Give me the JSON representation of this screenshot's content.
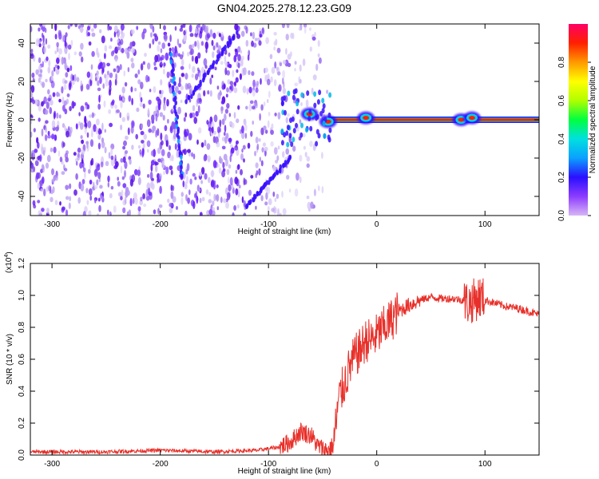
{
  "title": "GN04.2025.278.12.23.G09",
  "colors": {
    "line": "#e8302a",
    "band": "#ff2200",
    "scatter": [
      "#6a20ff",
      "#5a10e8",
      "#8a55f0",
      "#b497f2",
      "#d9c9f7"
    ],
    "colorbar": [
      "#d8b6f5",
      "#8c3cff",
      "#2a10ff",
      "#0aa0ff",
      "#00e0e0",
      "#00ff40",
      "#b0ff00",
      "#ffff00",
      "#ff9900",
      "#ff2000",
      "#ff0066"
    ]
  },
  "chart_data": [
    {
      "type": "heatmap",
      "xlabel": "Height of straight line (km)",
      "ylabel": "Frequency (Hz)",
      "xlim": [
        -320,
        150
      ],
      "ylim": [
        -50,
        50
      ],
      "xticks": [
        -300,
        -200,
        -100,
        0,
        100
      ],
      "yticks": [
        -40,
        -20,
        0,
        20,
        40
      ],
      "colorbar": {
        "label": "Normalized spectral amplitude",
        "range": [
          0,
          1
        ],
        "ticks": [
          "0.0",
          "0.2",
          "0.4",
          "0.6",
          "0.8"
        ]
      },
      "features": {
        "noise_region_x": [
          -320,
          -45
        ],
        "tonal_band": {
          "x": [
            -45,
            150
          ],
          "frequency": 0,
          "amplitude": 1.0
        },
        "streaks": [
          {
            "x": [
              -190,
              -180
            ],
            "f": [
              35,
              -30
            ]
          },
          {
            "x": [
              -175,
              -130
            ],
            "f": [
              10,
              45
            ]
          },
          {
            "x": [
              -120,
              -80
            ],
            "f": [
              -45,
              -20
            ]
          }
        ],
        "hotspots": [
          {
            "x": -62,
            "f": 3
          },
          {
            "x": -45,
            "f": -1
          },
          {
            "x": -10,
            "f": 1
          },
          {
            "x": 78,
            "f": 0
          },
          {
            "x": 88,
            "f": 1
          }
        ]
      }
    },
    {
      "type": "line",
      "xlabel": "Height of straight line (km)",
      "ylabel": "SNR (10 * v/v)",
      "multiplier": "(x10",
      "multiplier_exp": "4",
      "multiplier_close": ")",
      "xlim": [
        -320,
        150
      ],
      "ylim": [
        0,
        1.2
      ],
      "xticks": [
        -300,
        -200,
        -100,
        0,
        100
      ],
      "yticks": [
        "0.0",
        "0.2",
        "0.4",
        "0.6",
        "0.8",
        "1.0",
        "1.2"
      ],
      "series": [
        {
          "x": [
            -320,
            -250,
            -200,
            -150,
            -110,
            -90,
            -80,
            -70,
            -60,
            -55,
            -50,
            -45,
            -40,
            -35,
            -30,
            -25,
            -20,
            -15,
            -10,
            -5,
            0,
            10,
            20,
            30,
            40,
            50,
            60,
            70,
            80,
            85,
            90,
            95,
            100,
            110,
            120,
            130,
            140,
            150
          ],
          "y": [
            0.02,
            0.02,
            0.03,
            0.02,
            0.03,
            0.05,
            0.08,
            0.15,
            0.12,
            0.06,
            0.04,
            0.03,
            0.06,
            0.35,
            0.45,
            0.55,
            0.62,
            0.66,
            0.72,
            0.72,
            0.75,
            0.82,
            0.9,
            0.94,
            0.97,
            0.99,
            0.98,
            0.98,
            0.97,
            0.95,
            0.97,
            0.99,
            0.97,
            0.95,
            0.93,
            0.92,
            0.9,
            0.88
          ]
        }
      ]
    }
  ]
}
